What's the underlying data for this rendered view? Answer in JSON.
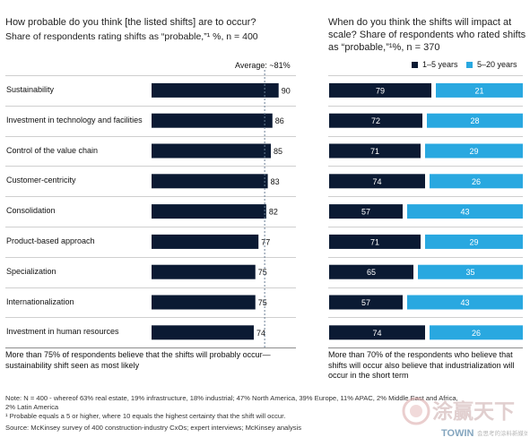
{
  "left_panel": {
    "title": "How probable do you think [the listed shifts] are to occur?",
    "subtitle": "Share of respondents rating shifts as “probable,”¹ %, n = 400",
    "average_label": "Average: ~81%",
    "caption": "More than 75% of respondents believe that the shifts will probably occur—sustainability shift seen as most likely"
  },
  "right_panel": {
    "title": "When do you think the shifts will impact at scale? Share of respondents who rated shifts as “probable,”¹%, n = 370",
    "caption": "More than 70% of the respondents who believe that shifts will occur also believe that industrialization will occur in the short term"
  },
  "footnotes": {
    "note": "Note: N = 400 - whereof 63% real estate, 19% infrastructure, 18% industrial; 47% North America, 39% Europe, 11% APAC, 2% Middle East and Africa, 2% Latin America",
    "footnote1": "¹ Probable equals a 5 or higher, where 10 equals the highest certainty that the shift will occur.",
    "source": "Source: McKinsey survey of 400 construction-industry CxOs; expert interviews; McKinsey analysis"
  },
  "watermark": {
    "chinese": "涂赢天下",
    "brand": "TOWIN",
    "tagline": "会思考的涂料新媒体"
  },
  "colors": {
    "navy": "#0b1a33",
    "cyan": "#29a8e0",
    "gridline": "#cfcfcf",
    "average_line": "#6a7f95"
  },
  "chart_data": [
    {
      "type": "bar",
      "orientation": "horizontal",
      "title": "How probable do you think [the listed shifts] are to occur?",
      "categories": [
        "Sustainability",
        "Investment in technology and facilities",
        "Control of the value chain",
        "Customer-centricity",
        "Consolidation",
        "Product-based approach",
        "Specialization",
        "Internationalization",
        "Investment in human resources"
      ],
      "values": [
        90,
        86,
        85,
        83,
        82,
        77,
        75,
        75,
        74
      ],
      "average": 81,
      "xlim": [
        0,
        100
      ],
      "grid": false
    },
    {
      "type": "bar",
      "orientation": "horizontal",
      "stacked": true,
      "title": "When do you think the shifts will impact at scale?",
      "categories": [
        "Sustainability",
        "Investment in technology and facilities",
        "Control of the value chain",
        "Customer-centricity",
        "Consolidation",
        "Product-based approach",
        "Specialization",
        "Internationalization",
        "Investment in human resources"
      ],
      "series": [
        {
          "name": "1–5 years",
          "color": "#0b1a33",
          "values": [
            79,
            72,
            71,
            74,
            57,
            71,
            65,
            57,
            74
          ]
        },
        {
          "name": "5–20 years",
          "color": "#29a8e0",
          "values": [
            21,
            28,
            29,
            26,
            43,
            29,
            35,
            43,
            26
          ]
        }
      ],
      "xlim": [
        0,
        100
      ],
      "legend": "top-right"
    }
  ]
}
